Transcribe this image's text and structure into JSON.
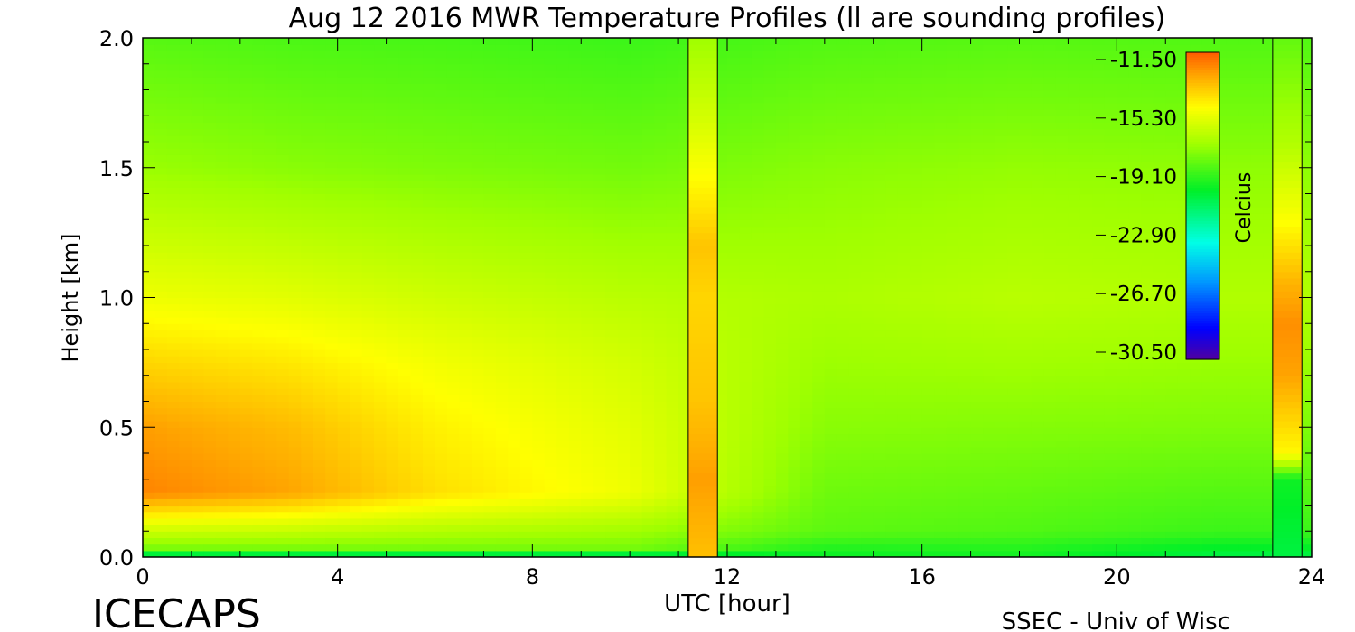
{
  "chart_data": {
    "type": "heatmap",
    "title": "Aug 12 2016 MWR Temperature Profiles (ll are sounding profiles)",
    "xlabel": "UTC [hour]",
    "ylabel": "Height [km]",
    "xlim": [
      0,
      24
    ],
    "ylim": [
      0,
      2
    ],
    "x_ticks": [
      "0",
      "4",
      "8",
      "12",
      "16",
      "20",
      "24"
    ],
    "y_ticks": [
      "0.0",
      "0.5",
      "1.0",
      "1.5",
      "2.0"
    ],
    "colorbar": {
      "label": "Celcius",
      "ticks": [
        "-11.50",
        "-15.30",
        "-19.10",
        "-22.90",
        "-26.70",
        "-30.50"
      ],
      "range": [
        -30.5,
        -11.5
      ]
    },
    "sounding_profiles": [
      {
        "x_range": [
          11.2,
          11.8
        ],
        "profile": [
          [
            0.0,
            -13.5
          ],
          [
            0.3,
            -12.8
          ],
          [
            0.6,
            -13.6
          ],
          [
            1.0,
            -14.0
          ],
          [
            1.2,
            -13.6
          ],
          [
            1.4,
            -14.6
          ],
          [
            1.7,
            -16.0
          ],
          [
            2.0,
            -17.2
          ]
        ]
      },
      {
        "x_range": [
          23.2,
          23.8
        ],
        "profile": [
          [
            0.0,
            -20.5
          ],
          [
            0.3,
            -19.8
          ],
          [
            0.4,
            -14.8
          ],
          [
            0.7,
            -12.9
          ],
          [
            0.9,
            -12.5
          ],
          [
            1.05,
            -13.2
          ],
          [
            1.3,
            -15.0
          ],
          [
            1.6,
            -16.8
          ],
          [
            2.0,
            -18.3
          ]
        ]
      }
    ],
    "field_description_points": [
      {
        "utc": 0.0,
        "profile": [
          [
            0.0,
            -22.0
          ],
          [
            0.03,
            -18.0
          ],
          [
            0.25,
            -12.3
          ],
          [
            0.5,
            -12.8
          ],
          [
            0.75,
            -14.0
          ],
          [
            1.0,
            -15.3
          ],
          [
            1.5,
            -17.3
          ],
          [
            2.0,
            -18.5
          ]
        ]
      },
      {
        "utc": 3.0,
        "profile": [
          [
            0.0,
            -22.0
          ],
          [
            0.03,
            -18.0
          ],
          [
            0.25,
            -12.9
          ],
          [
            0.5,
            -13.4
          ],
          [
            0.75,
            -14.4
          ],
          [
            1.0,
            -15.6
          ],
          [
            1.5,
            -17.6
          ],
          [
            2.0,
            -18.7
          ]
        ]
      },
      {
        "utc": 6.0,
        "profile": [
          [
            0.0,
            -22.0
          ],
          [
            0.03,
            -18.0
          ],
          [
            0.25,
            -14.2
          ],
          [
            0.5,
            -14.6
          ],
          [
            0.75,
            -15.2
          ],
          [
            1.0,
            -16.1
          ],
          [
            1.5,
            -17.8
          ],
          [
            2.0,
            -18.8
          ]
        ]
      },
      {
        "utc": 10.0,
        "profile": [
          [
            0.0,
            -22.0
          ],
          [
            0.03,
            -18.0
          ],
          [
            0.25,
            -15.3
          ],
          [
            0.5,
            -15.6
          ],
          [
            0.75,
            -16.0
          ],
          [
            1.0,
            -16.6
          ],
          [
            1.5,
            -18.0
          ],
          [
            2.0,
            -19.0
          ]
        ]
      },
      {
        "utc": 14.0,
        "profile": [
          [
            0.0,
            -20.0
          ],
          [
            0.1,
            -18.4
          ],
          [
            0.5,
            -17.6
          ],
          [
            1.0,
            -16.9
          ],
          [
            1.5,
            -17.6
          ],
          [
            2.0,
            -18.6
          ]
        ]
      },
      {
        "utc": 18.0,
        "profile": [
          [
            0.0,
            -19.8
          ],
          [
            0.1,
            -18.6
          ],
          [
            0.5,
            -17.7
          ],
          [
            1.0,
            -16.6
          ],
          [
            1.5,
            -17.4
          ],
          [
            2.0,
            -18.5
          ]
        ]
      },
      {
        "utc": 22.0,
        "profile": [
          [
            0.0,
            -20.6
          ],
          [
            0.1,
            -19.0
          ],
          [
            0.5,
            -17.8
          ],
          [
            1.0,
            -16.8
          ],
          [
            1.5,
            -17.5
          ],
          [
            2.0,
            -18.6
          ]
        ]
      }
    ]
  },
  "footer": {
    "left_logo": "ICECAPS",
    "right_credit": "SSEC - Univ of Wisc"
  }
}
